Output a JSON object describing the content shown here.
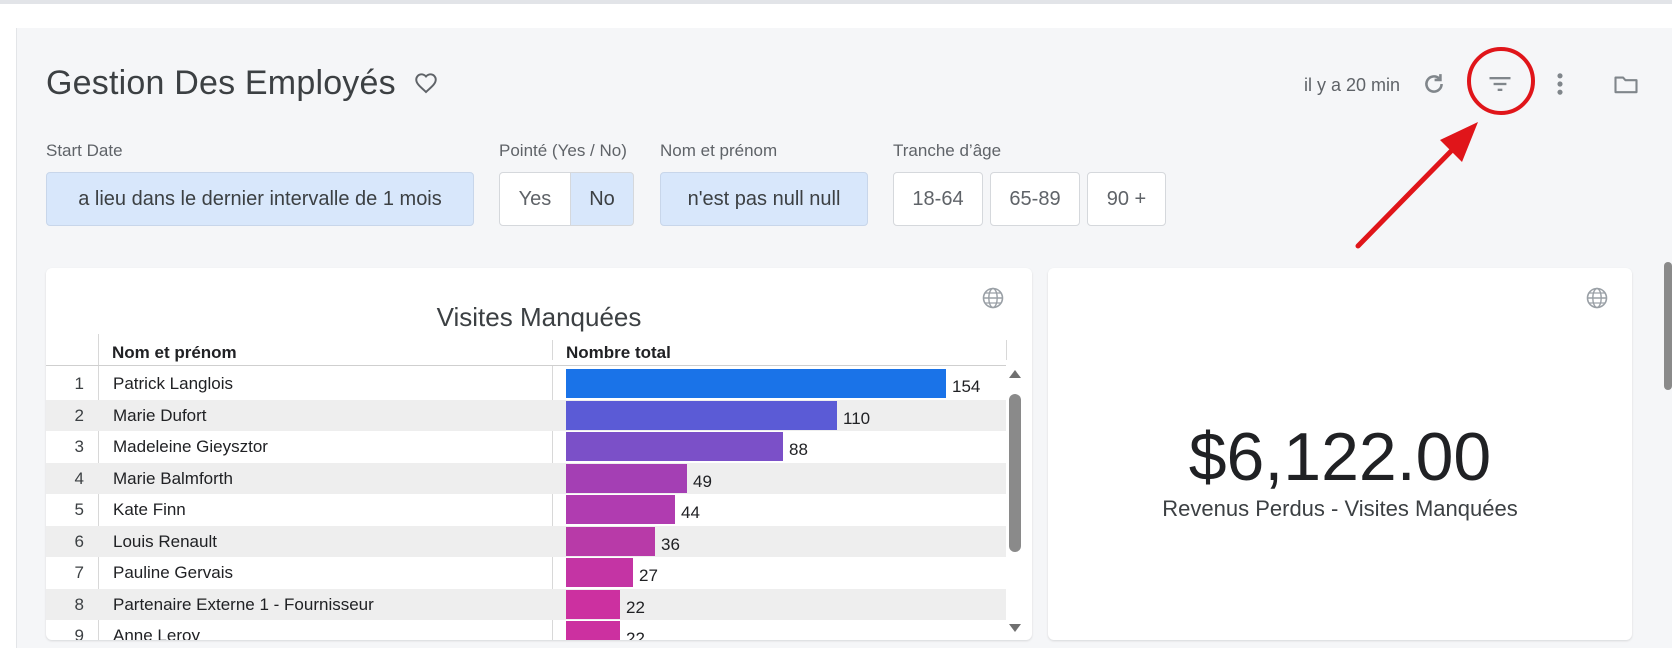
{
  "header": {
    "title": "Gestion Des Employés",
    "updated": "il y a 20 min",
    "icons": [
      "heart-icon",
      "refresh-icon",
      "filter-icon",
      "more-vert-icon",
      "folder-icon"
    ]
  },
  "filters": {
    "start_date": {
      "label": "Start Date",
      "value": "a lieu dans le dernier intervalle de 1 mois"
    },
    "pointe": {
      "label": "Pointé (Yes / No)",
      "options": [
        "Yes",
        "No"
      ],
      "selected": "No"
    },
    "nom": {
      "label": "Nom et prénom",
      "value": "n'est pas null null"
    },
    "tranche": {
      "label": "Tranche d’âge",
      "options": [
        "18-64",
        "65-89",
        "90 +"
      ]
    }
  },
  "visits_card": {
    "title": "Visites Manquées",
    "columns": [
      "Nom et prénom",
      "Nombre total"
    ],
    "rows": [
      {
        "rank": "1",
        "name": "Patrick Langlois",
        "value": 154,
        "color": "#1a73e8"
      },
      {
        "rank": "2",
        "name": "Marie Dufort",
        "value": 110,
        "color": "#5b5bd6"
      },
      {
        "rank": "3",
        "name": "Madeleine Gieysztor",
        "value": 88,
        "color": "#7b50c8"
      },
      {
        "rank": "4",
        "name": "Marie Balmforth",
        "value": 49,
        "color": "#a43fb4"
      },
      {
        "rank": "5",
        "name": "Kate Finn",
        "value": 44,
        "color": "#b03cb0"
      },
      {
        "rank": "6",
        "name": "Louis Renault",
        "value": 36,
        "color": "#b83aa8"
      },
      {
        "rank": "7",
        "name": "Pauline Gervais",
        "value": 27,
        "color": "#c434a4"
      },
      {
        "rank": "8",
        "name": "Partenaire Externe 1 - Fournisseur",
        "value": 22,
        "color": "#cc30a0"
      },
      {
        "rank": "9",
        "name": "Anne Leroy",
        "value": 22,
        "color": "#cc30a0"
      }
    ]
  },
  "kpi_card": {
    "value": "$6,122.00",
    "label": "Revenus Perdus - Visites Manquées"
  }
}
